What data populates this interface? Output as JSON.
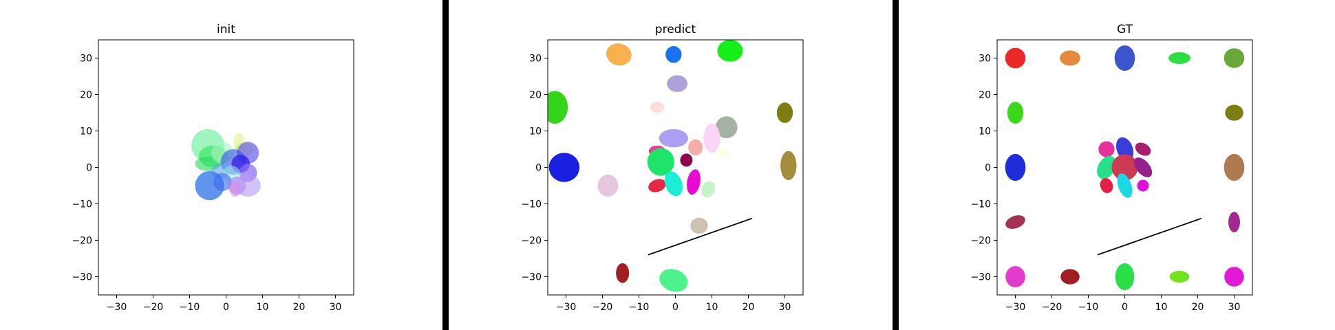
{
  "chart_data": [
    {
      "type": "scatter",
      "title": "init",
      "xlim": [
        -35,
        35
      ],
      "ylim": [
        -35,
        35
      ],
      "xticks": [
        "−30",
        "−20",
        "−10",
        "0",
        "10",
        "20",
        "30"
      ],
      "yticks": [
        "−30",
        "−20",
        "−10",
        "0",
        "10",
        "20",
        "30"
      ],
      "grid": false,
      "ellipses": [
        {
          "x": -5,
          "y": 6,
          "rx": 4.5,
          "ry": 4.5,
          "angle": 0,
          "color": "#7ff2a8",
          "opacity": 0.75
        },
        {
          "x": -3.5,
          "y": 3,
          "rx": 4,
          "ry": 3,
          "angle": 0,
          "color": "#3de86a",
          "opacity": 0.7
        },
        {
          "x": -5,
          "y": 1,
          "rx": 3.5,
          "ry": 2,
          "angle": 0,
          "color": "#28d860",
          "opacity": 0.6
        },
        {
          "x": -1,
          "y": 4,
          "rx": 3,
          "ry": 3,
          "angle": 0,
          "color": "#a6f2c0",
          "opacity": 0.6
        },
        {
          "x": 3.5,
          "y": 7,
          "rx": 1.5,
          "ry": 2.5,
          "angle": 0,
          "color": "#e8f29a",
          "opacity": 0.7
        },
        {
          "x": 5,
          "y": 5,
          "rx": 2.5,
          "ry": 2,
          "angle": 0,
          "color": "#c0f26e",
          "opacity": 0.6
        },
        {
          "x": 6,
          "y": 4,
          "rx": 3,
          "ry": 3,
          "angle": 0,
          "color": "#6a5cf0",
          "opacity": 0.7
        },
        {
          "x": 2,
          "y": 1.5,
          "rx": 3.5,
          "ry": 3.5,
          "angle": 0,
          "color": "#3a5ae8",
          "opacity": 0.65
        },
        {
          "x": 4,
          "y": 1,
          "rx": 2.5,
          "ry": 2.5,
          "angle": 0,
          "color": "#3214e6",
          "opacity": 0.7
        },
        {
          "x": -1.5,
          "y": -1,
          "rx": 2.5,
          "ry": 2,
          "angle": 0,
          "color": "#58a8ee",
          "opacity": 0.6
        },
        {
          "x": 6,
          "y": -1.5,
          "rx": 2.5,
          "ry": 2.5,
          "angle": 0,
          "color": "#8a6aee",
          "opacity": 0.7
        },
        {
          "x": 1.5,
          "y": -2,
          "rx": 2.5,
          "ry": 2.5,
          "angle": 0,
          "color": "#9ee6e6",
          "opacity": 0.55
        },
        {
          "x": -4.5,
          "y": -5,
          "rx": 4,
          "ry": 4,
          "angle": 0,
          "color": "#3a7ae8",
          "opacity": 0.8
        },
        {
          "x": -1,
          "y": -4,
          "rx": 2.5,
          "ry": 2.5,
          "angle": 0,
          "color": "#3a6ae8",
          "opacity": 0.6
        },
        {
          "x": 3,
          "y": -5,
          "rx": 2.5,
          "ry": 2.5,
          "angle": 0,
          "color": "#a878ee",
          "opacity": 0.6
        },
        {
          "x": 6,
          "y": -5,
          "rx": 3.5,
          "ry": 3,
          "angle": 0,
          "color": "#b69af2",
          "opacity": 0.6
        },
        {
          "x": 2.5,
          "y": -6,
          "rx": 1.5,
          "ry": 2,
          "angle": 0,
          "color": "#d48ae8",
          "opacity": 0.6
        }
      ],
      "lines": []
    },
    {
      "type": "scatter",
      "title": "predict",
      "xlim": [
        -35,
        35
      ],
      "ylim": [
        -35,
        35
      ],
      "xticks": [
        "−30",
        "−20",
        "−10",
        "0",
        "10",
        "20",
        "30"
      ],
      "yticks": [
        "−30",
        "−20",
        "−10",
        "0",
        "10",
        "20",
        "30"
      ],
      "grid": false,
      "ellipses": [
        {
          "x": -15.5,
          "y": 31,
          "rx": 3.5,
          "ry": 3,
          "angle": -15,
          "color": "#f7a839",
          "opacity": 0.9
        },
        {
          "x": -0.5,
          "y": 31,
          "rx": 2.2,
          "ry": 2.3,
          "angle": 0,
          "color": "#1a72f0",
          "opacity": 1
        },
        {
          "x": 15,
          "y": 32,
          "rx": 3.5,
          "ry": 3,
          "angle": 0,
          "color": "#18ee1a",
          "opacity": 1
        },
        {
          "x": 0.5,
          "y": 23,
          "rx": 2.8,
          "ry": 2.3,
          "angle": 0,
          "color": "#a090d2",
          "opacity": 0.85
        },
        {
          "x": -33,
          "y": 16.5,
          "rx": 3.5,
          "ry": 4.5,
          "angle": 0,
          "color": "#33d41a",
          "opacity": 1
        },
        {
          "x": -5,
          "y": 16.5,
          "rx": 2,
          "ry": 1.5,
          "angle": 0,
          "color": "#fadad5",
          "opacity": 0.9
        },
        {
          "x": 14,
          "y": 11,
          "rx": 3,
          "ry": 3,
          "angle": 0,
          "color": "#99aa99",
          "opacity": 0.9
        },
        {
          "x": 30,
          "y": 15,
          "rx": 2.2,
          "ry": 2.8,
          "angle": 0,
          "color": "#7d7e10",
          "opacity": 1
        },
        {
          "x": 31,
          "y": 0.5,
          "rx": 2.2,
          "ry": 4,
          "angle": 0,
          "color": "#a48d3b",
          "opacity": 1
        },
        {
          "x": -0.5,
          "y": 8,
          "rx": 4,
          "ry": 2.5,
          "angle": 0,
          "color": "#9f8cf1",
          "opacity": 0.85
        },
        {
          "x": 10,
          "y": 8,
          "rx": 2.3,
          "ry": 4,
          "angle": 0,
          "color": "#fbcff7",
          "opacity": 0.9
        },
        {
          "x": 13,
          "y": 4,
          "rx": 2,
          "ry": 1.5,
          "angle": 0,
          "color": "#fcfce0",
          "opacity": 0.7
        },
        {
          "x": 5.5,
          "y": 5.5,
          "rx": 2,
          "ry": 2.2,
          "angle": 0,
          "color": "#f4a49e",
          "opacity": 0.9
        },
        {
          "x": -5,
          "y": 4.5,
          "rx": 2.3,
          "ry": 1.5,
          "angle": 0,
          "color": "#ee3a98",
          "opacity": 1
        },
        {
          "x": -4,
          "y": 1.5,
          "rx": 3.7,
          "ry": 3.8,
          "angle": 0,
          "color": "#1ee46a",
          "opacity": 1
        },
        {
          "x": 3,
          "y": 2,
          "rx": 1.7,
          "ry": 1.8,
          "angle": 0,
          "color": "#8c0a4c",
          "opacity": 1
        },
        {
          "x": -30.5,
          "y": 0,
          "rx": 4.2,
          "ry": 4,
          "angle": 0,
          "color": "#1a20e0",
          "opacity": 1
        },
        {
          "x": -18.5,
          "y": -5,
          "rx": 2.8,
          "ry": 3,
          "angle": 0,
          "color": "#e6c6df",
          "opacity": 1
        },
        {
          "x": -5,
          "y": -5,
          "rx": 2.5,
          "ry": 1.7,
          "angle": 20,
          "color": "#e42a44",
          "opacity": 1
        },
        {
          "x": -0.5,
          "y": -4.5,
          "rx": 2.3,
          "ry": 3.5,
          "angle": 20,
          "color": "#1aefd4",
          "opacity": 1
        },
        {
          "x": 5,
          "y": -4,
          "rx": 1.8,
          "ry": 3.5,
          "angle": -10,
          "color": "#e80ad0",
          "opacity": 1
        },
        {
          "x": 9,
          "y": -6,
          "rx": 1.8,
          "ry": 2.3,
          "angle": -20,
          "color": "#c6f3c6",
          "opacity": 1
        },
        {
          "x": 6.5,
          "y": -16,
          "rx": 2.4,
          "ry": 2.2,
          "angle": 0,
          "color": "#cdc2b0",
          "opacity": 1
        },
        {
          "x": -14.5,
          "y": -29,
          "rx": 1.8,
          "ry": 2.7,
          "angle": 0,
          "color": "#a01e24",
          "opacity": 1
        },
        {
          "x": -0.5,
          "y": -31,
          "rx": 4,
          "ry": 3,
          "angle": -20,
          "color": "#4ef28c",
          "opacity": 1
        }
      ],
      "lines": [
        {
          "x": [
            -7.5,
            21
          ],
          "y": [
            -24,
            -14
          ],
          "color": "#000000"
        }
      ]
    },
    {
      "type": "scatter",
      "title": "GT",
      "xlim": [
        -35,
        35
      ],
      "ylim": [
        -35,
        35
      ],
      "xticks": [
        "−30",
        "−20",
        "−10",
        "0",
        "10",
        "20",
        "30"
      ],
      "yticks": [
        "−30",
        "−20",
        "−10",
        "0",
        "10",
        "20",
        "30"
      ],
      "grid": false,
      "ellipses": [
        {
          "x": -30,
          "y": 30,
          "rx": 2.8,
          "ry": 2.8,
          "angle": 0,
          "color": "#ea2a28",
          "opacity": 1
        },
        {
          "x": -15,
          "y": 30,
          "rx": 2.8,
          "ry": 2.1,
          "angle": 0,
          "color": "#e58a3b",
          "opacity": 1
        },
        {
          "x": 0,
          "y": 30,
          "rx": 2.8,
          "ry": 3.5,
          "angle": 0,
          "color": "#3c54cc",
          "opacity": 1
        },
        {
          "x": 15,
          "y": 30,
          "rx": 3,
          "ry": 1.6,
          "angle": 0,
          "color": "#2bdf40",
          "opacity": 1
        },
        {
          "x": 30,
          "y": 30,
          "rx": 2.8,
          "ry": 2.7,
          "angle": 0,
          "color": "#6aa83a",
          "opacity": 1
        },
        {
          "x": -30,
          "y": 15,
          "rx": 2.2,
          "ry": 3,
          "angle": 0,
          "color": "#3ad81a",
          "opacity": 1
        },
        {
          "x": 30,
          "y": 15,
          "rx": 2.5,
          "ry": 2.2,
          "angle": 0,
          "color": "#7d7e10",
          "opacity": 1
        },
        {
          "x": -30,
          "y": 0,
          "rx": 2.8,
          "ry": 3.7,
          "angle": 0,
          "color": "#1e2ed8",
          "opacity": 1
        },
        {
          "x": 30,
          "y": 0,
          "rx": 2.8,
          "ry": 3.7,
          "angle": 0,
          "color": "#b07a50",
          "opacity": 1
        },
        {
          "x": -30,
          "y": -15,
          "rx": 2.8,
          "ry": 1.7,
          "angle": 20,
          "color": "#a63050",
          "opacity": 1
        },
        {
          "x": 30,
          "y": -15,
          "rx": 1.6,
          "ry": 2.8,
          "angle": 0,
          "color": "#a02a90",
          "opacity": 1
        },
        {
          "x": -30,
          "y": -30,
          "rx": 2.7,
          "ry": 2.9,
          "angle": 0,
          "color": "#e23ccc",
          "opacity": 1
        },
        {
          "x": -15,
          "y": -30,
          "rx": 2.6,
          "ry": 2.1,
          "angle": 0,
          "color": "#a01e24",
          "opacity": 1
        },
        {
          "x": 0,
          "y": -30,
          "rx": 2.6,
          "ry": 3.7,
          "angle": 0,
          "color": "#2ae048",
          "opacity": 1
        },
        {
          "x": 15,
          "y": -30,
          "rx": 2.7,
          "ry": 1.6,
          "angle": 0,
          "color": "#72e21e",
          "opacity": 1
        },
        {
          "x": 30,
          "y": -30,
          "rx": 2.7,
          "ry": 2.7,
          "angle": 0,
          "color": "#e21ad8",
          "opacity": 1
        },
        {
          "x": -5,
          "y": 5,
          "rx": 2.2,
          "ry": 2.2,
          "angle": 0,
          "color": "#e6309a",
          "opacity": 1
        },
        {
          "x": 0,
          "y": 5,
          "rx": 2.2,
          "ry": 3.4,
          "angle": 20,
          "color": "#3a3ed8",
          "opacity": 1
        },
        {
          "x": 5,
          "y": 5,
          "rx": 2.3,
          "ry": 1.6,
          "angle": -30,
          "color": "#a81e6e",
          "opacity": 1
        },
        {
          "x": -5,
          "y": 0,
          "rx": 2.3,
          "ry": 3.4,
          "angle": -30,
          "color": "#28e08a",
          "opacity": 1
        },
        {
          "x": 0,
          "y": 0,
          "rx": 3.6,
          "ry": 3.6,
          "angle": 0,
          "color": "#cc3a54",
          "opacity": 1
        },
        {
          "x": 5,
          "y": 0,
          "rx": 1.8,
          "ry": 3.2,
          "angle": 40,
          "color": "#98208a",
          "opacity": 1
        },
        {
          "x": -5,
          "y": -5,
          "rx": 1.7,
          "ry": 2.1,
          "angle": 20,
          "color": "#e41e46",
          "opacity": 1
        },
        {
          "x": 0,
          "y": -5,
          "rx": 1.8,
          "ry": 3.5,
          "angle": 20,
          "color": "#1ad8e4",
          "opacity": 1
        },
        {
          "x": 5,
          "y": -5,
          "rx": 1.6,
          "ry": 1.6,
          "angle": 0,
          "color": "#e010dc",
          "opacity": 1
        }
      ],
      "lines": [
        {
          "x": [
            -7.5,
            21
          ],
          "y": [
            -24,
            -14
          ],
          "color": "#000000"
        }
      ]
    }
  ]
}
